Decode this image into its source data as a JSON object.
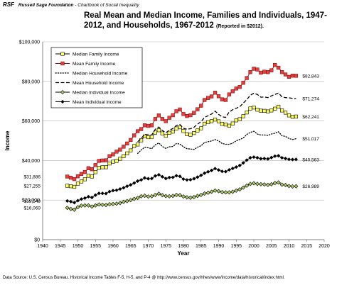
{
  "header": {
    "badge": "RSF",
    "org": "Russell Sage Foundation",
    "separator": " - ",
    "series_title": "Chartbook of Social Inequality"
  },
  "title_main": "Real Mean and Median Income, Families and Individuals, 1947-2012, and Households, 1967-2012",
  "title_note": "(Reported in $2012).",
  "source": "Data Source: U.S. Census Bureau. Historical Income Tables F-5, H-5, and P-4 @ http://www.census.gov/hhes/www/income/data/historical/index.html.",
  "colors": {
    "median_family_fill": "#ffff66",
    "mean_family_fill": "#e04040",
    "median_individual_fill": "#aacc66"
  },
  "chart_data": {
    "type": "line",
    "xlabel": "Year",
    "ylabel": "Income",
    "xlim": [
      1940,
      2020
    ],
    "ylim": [
      0,
      100000
    ],
    "x_ticks": [
      "1940",
      "1945",
      "1950",
      "1955",
      "1960",
      "1965",
      "1970",
      "1975",
      "1980",
      "1985",
      "1990",
      "1995",
      "2000",
      "2005",
      "2010",
      "2015",
      "2020"
    ],
    "y_ticks": [
      "$0",
      "$20,000",
      "$40,000",
      "$60,000",
      "$80,000",
      "$100,000"
    ],
    "grid": "horizontal",
    "legend_position": "top-left",
    "series": [
      {
        "name": "Median Family Income",
        "marker": "square-open-yellow",
        "start_label": "$27,255",
        "end_label": "$62,241",
        "x": [
          1947,
          1948,
          1949,
          1950,
          1951,
          1952,
          1953,
          1954,
          1955,
          1956,
          1957,
          1958,
          1959,
          1960,
          1961,
          1962,
          1963,
          1964,
          1965,
          1966,
          1967,
          1968,
          1969,
          1970,
          1971,
          1972,
          1973,
          1974,
          1975,
          1976,
          1977,
          1978,
          1979,
          1980,
          1981,
          1982,
          1983,
          1984,
          1985,
          1986,
          1987,
          1988,
          1989,
          1990,
          1991,
          1992,
          1993,
          1994,
          1995,
          1996,
          1997,
          1998,
          1999,
          2000,
          2001,
          2002,
          2003,
          2004,
          2005,
          2006,
          2007,
          2008,
          2009,
          2010,
          2011,
          2012
        ],
        "y": [
          27255,
          27000,
          26700,
          28300,
          29400,
          30500,
          32300,
          31900,
          34100,
          36300,
          36600,
          36600,
          38500,
          39400,
          39800,
          40900,
          42200,
          43600,
          45100,
          47300,
          48100,
          50200,
          52200,
          51800,
          52000,
          54100,
          55300,
          53700,
          52500,
          54000,
          54600,
          56200,
          56800,
          54900,
          53300,
          53000,
          53900,
          55200,
          56300,
          58600,
          59400,
          59900,
          60700,
          59800,
          58500,
          58200,
          57600,
          58700,
          60300,
          60900,
          62400,
          64300,
          66300,
          66800,
          65700,
          65200,
          65100,
          64800,
          65300,
          66200,
          67200,
          65300,
          64200,
          62800,
          62100,
          62241
        ]
      },
      {
        "name": "Mean Family Income",
        "marker": "square-red",
        "start_label": "$31,886",
        "end_label": "$82,843",
        "x": [
          1947,
          1948,
          1949,
          1950,
          1951,
          1952,
          1953,
          1954,
          1955,
          1956,
          1957,
          1958,
          1959,
          1960,
          1961,
          1962,
          1963,
          1964,
          1965,
          1966,
          1967,
          1968,
          1969,
          1970,
          1971,
          1972,
          1973,
          1974,
          1975,
          1976,
          1977,
          1978,
          1979,
          1980,
          1981,
          1982,
          1983,
          1984,
          1985,
          1986,
          1987,
          1988,
          1989,
          1990,
          1991,
          1992,
          1993,
          1994,
          1995,
          1996,
          1997,
          1998,
          1999,
          2000,
          2001,
          2002,
          2003,
          2004,
          2005,
          2006,
          2007,
          2008,
          2009,
          2010,
          2011,
          2012
        ],
        "y": [
          31886,
          31300,
          30600,
          32000,
          33200,
          34200,
          36100,
          35600,
          37700,
          39800,
          40000,
          40100,
          42200,
          43100,
          44500,
          45500,
          47000,
          48600,
          50400,
          52700,
          54800,
          55900,
          57800,
          57500,
          57800,
          61000,
          62800,
          61000,
          59900,
          61600,
          62900,
          64900,
          65800,
          63500,
          62500,
          62900,
          64100,
          65900,
          67700,
          70600,
          71600,
          72400,
          74300,
          72500,
          70900,
          70600,
          73400,
          75000,
          76400,
          77200,
          79300,
          81700,
          84700,
          86400,
          86000,
          84400,
          84900,
          84700,
          85600,
          88300,
          86900,
          84700,
          83500,
          82300,
          82900,
          82843
        ]
      },
      {
        "name": "Median Household Income",
        "marker": "dotted",
        "start_label": "",
        "end_label": "$51,017",
        "x": [
          1967,
          1968,
          1969,
          1970,
          1971,
          1972,
          1973,
          1974,
          1975,
          1976,
          1977,
          1978,
          1979,
          1980,
          1981,
          1982,
          1983,
          1984,
          1985,
          1986,
          1987,
          1988,
          1989,
          1990,
          1991,
          1992,
          1993,
          1994,
          1995,
          1996,
          1997,
          1998,
          1999,
          2000,
          2001,
          2002,
          2003,
          2004,
          2005,
          2006,
          2007,
          2008,
          2009,
          2010,
          2011,
          2012
        ],
        "y": [
          43600,
          45300,
          46700,
          46400,
          46000,
          47900,
          48900,
          47100,
          46100,
          46900,
          47100,
          48600,
          48300,
          46900,
          46000,
          45800,
          45600,
          46700,
          47500,
          49100,
          49500,
          49900,
          50600,
          49900,
          48600,
          48200,
          48200,
          48700,
          50000,
          50600,
          51400,
          53200,
          54200,
          54800,
          53400,
          52900,
          52900,
          52700,
          53400,
          53800,
          54500,
          52500,
          52200,
          51100,
          50600,
          51017
        ]
      },
      {
        "name": "Mean Household Income",
        "marker": "dashed",
        "start_label": "",
        "end_label": "$71,274",
        "x": [
          1967,
          1968,
          1969,
          1970,
          1971,
          1972,
          1973,
          1974,
          1975,
          1976,
          1977,
          1978,
          1979,
          1980,
          1981,
          1982,
          1983,
          1984,
          1985,
          1986,
          1987,
          1988,
          1989,
          1990,
          1991,
          1992,
          1993,
          1994,
          1995,
          1996,
          1997,
          1998,
          1999,
          2000,
          2001,
          2002,
          2003,
          2004,
          2005,
          2006,
          2007,
          2008,
          2009,
          2010,
          2011,
          2012
        ],
        "y": [
          49500,
          51200,
          53200,
          53000,
          52900,
          55800,
          56900,
          55200,
          54100,
          55300,
          56200,
          57700,
          58200,
          56300,
          55800,
          56100,
          56800,
          58400,
          59600,
          61800,
          62600,
          63500,
          65000,
          63300,
          62100,
          61800,
          64500,
          65700,
          66400,
          67200,
          69000,
          70800,
          73000,
          74000,
          73400,
          72000,
          72100,
          71800,
          72700,
          73400,
          74100,
          72200,
          71800,
          71700,
          71400,
          71274
        ]
      },
      {
        "name": "Median Individual Income",
        "marker": "diamond-open-green",
        "start_label": "$16,069",
        "end_label": "$26,989",
        "x": [
          1947,
          1948,
          1949,
          1950,
          1951,
          1952,
          1953,
          1954,
          1955,
          1956,
          1957,
          1958,
          1959,
          1960,
          1961,
          1962,
          1963,
          1964,
          1965,
          1966,
          1967,
          1968,
          1969,
          1970,
          1971,
          1972,
          1973,
          1974,
          1975,
          1976,
          1977,
          1978,
          1979,
          1980,
          1981,
          1982,
          1983,
          1984,
          1985,
          1986,
          1987,
          1988,
          1989,
          1990,
          1991,
          1992,
          1993,
          1994,
          1995,
          1996,
          1997,
          1998,
          1999,
          2000,
          2001,
          2002,
          2003,
          2004,
          2005,
          2006,
          2007,
          2008,
          2009,
          2010,
          2011,
          2012
        ],
        "y": [
          16069,
          15500,
          15100,
          16400,
          17200,
          17300,
          17300,
          16700,
          17300,
          17800,
          17600,
          17500,
          17900,
          18000,
          18200,
          18500,
          19100,
          19500,
          20000,
          20600,
          21100,
          21900,
          22200,
          21800,
          21900,
          22600,
          23200,
          22500,
          22000,
          21900,
          22100,
          22600,
          22500,
          21800,
          21400,
          21200,
          21500,
          22100,
          22600,
          23300,
          23700,
          24200,
          24800,
          24500,
          24000,
          23900,
          23900,
          24200,
          24800,
          25400,
          26300,
          27300,
          28200,
          28500,
          28200,
          28000,
          27900,
          27700,
          28000,
          28600,
          28900,
          27800,
          27600,
          27100,
          26900,
          26989
        ]
      },
      {
        "name": "Mean Individual Income",
        "marker": "diamond-black",
        "start_label": "$19,549",
        "end_label": "$40,563",
        "x": [
          1947,
          1948,
          1949,
          1950,
          1951,
          1952,
          1953,
          1954,
          1955,
          1956,
          1957,
          1958,
          1959,
          1960,
          1961,
          1962,
          1963,
          1964,
          1965,
          1966,
          1967,
          1968,
          1969,
          1970,
          1971,
          1972,
          1973,
          1974,
          1975,
          1976,
          1977,
          1978,
          1979,
          1980,
          1981,
          1982,
          1983,
          1984,
          1985,
          1986,
          1987,
          1988,
          1989,
          1990,
          1991,
          1992,
          1993,
          1994,
          1995,
          1996,
          1997,
          1998,
          1999,
          2000,
          2001,
          2002,
          2003,
          2004,
          2005,
          2006,
          2007,
          2008,
          2009,
          2010,
          2011,
          2012
        ],
        "y": [
          19549,
          19200,
          18700,
          19700,
          20500,
          21000,
          21700,
          21300,
          22500,
          23400,
          23400,
          23300,
          24300,
          24800,
          25000,
          25600,
          26200,
          27000,
          27700,
          28600,
          29600,
          30200,
          31200,
          30800,
          30900,
          32200,
          32800,
          31800,
          30900,
          31400,
          31500,
          32300,
          32000,
          30600,
          30200,
          30300,
          30800,
          31600,
          32500,
          33600,
          34300,
          35000,
          35900,
          35200,
          34500,
          34400,
          35300,
          36000,
          36700,
          37500,
          38800,
          40200,
          41400,
          41700,
          41400,
          40900,
          41000,
          40800,
          41500,
          42200,
          42400,
          41400,
          41000,
          40600,
          40500,
          40563
        ]
      }
    ]
  }
}
